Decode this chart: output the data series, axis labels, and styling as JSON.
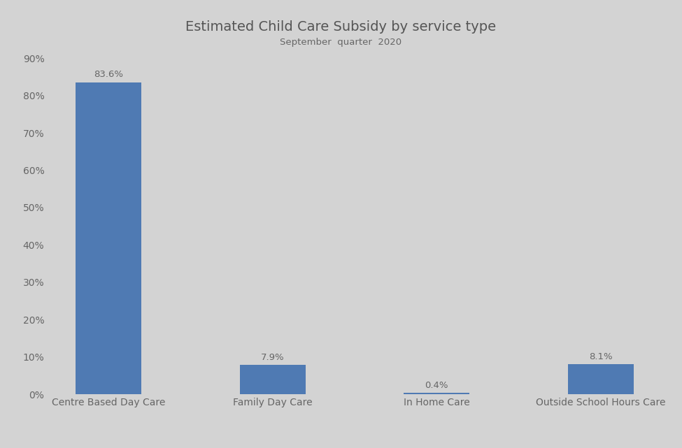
{
  "title": "Estimated Child Care Subsidy by service type",
  "subtitle": "September  quarter  2020",
  "categories": [
    "Centre Based Day Care",
    "Family Day Care",
    "In Home Care",
    "Outside School Hours Care"
  ],
  "values": [
    83.6,
    7.9,
    0.4,
    8.1
  ],
  "bar_color": "#4f7ab3",
  "background_color": "#d3d3d3",
  "ylim": [
    0,
    90
  ],
  "yticks": [
    0,
    10,
    20,
    30,
    40,
    50,
    60,
    70,
    80,
    90
  ],
  "ytick_labels": [
    "0%",
    "10%",
    "20%",
    "30%",
    "40%",
    "50%",
    "60%",
    "70%",
    "80%",
    "90%"
  ],
  "label_fontsize": 9.5,
  "title_fontsize": 14,
  "subtitle_fontsize": 9.5,
  "tick_label_fontsize": 10,
  "bar_width": 0.4,
  "text_color": "#666666",
  "title_color": "#555555"
}
